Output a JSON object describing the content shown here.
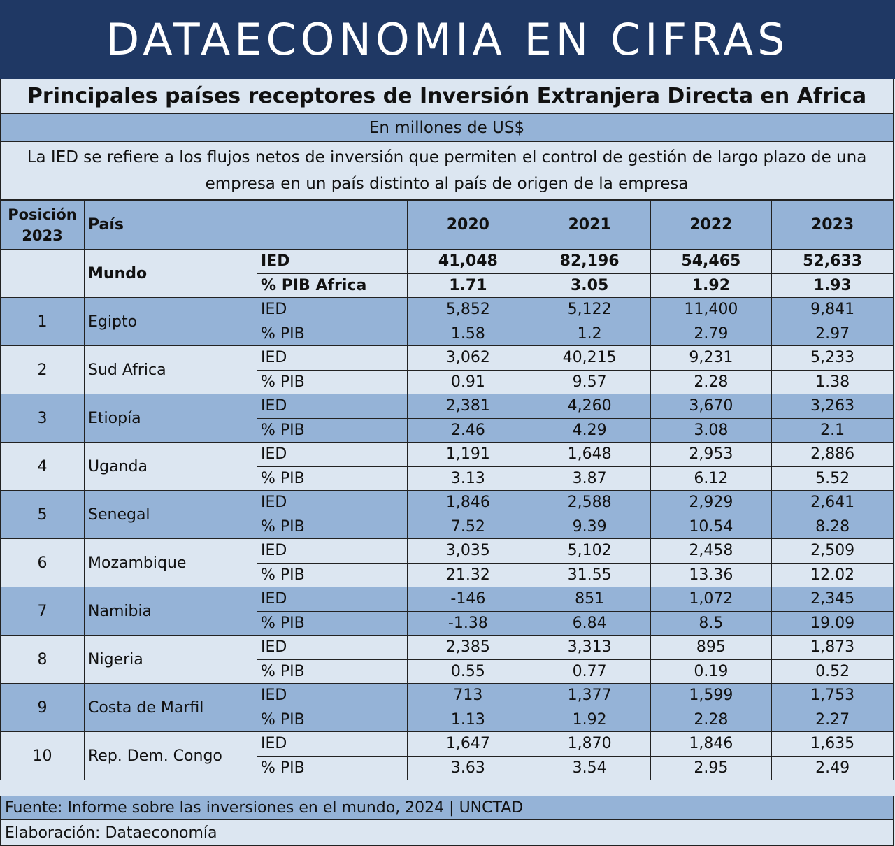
{
  "banner": "DATAECONOMIA EN CIFRAS",
  "title": "Principales países receptores de Inversión Extranjera Directa en Africa",
  "units": "En millones de US$",
  "description": "La IED se refiere a los flujos netos de inversión que permiten el control de gestión de largo plazo de una empresa en un país distinto al país de origen de la empresa",
  "headers": {
    "position": "Posición 2023",
    "country": "País",
    "metric": "",
    "years": [
      "2020",
      "2021",
      "2022",
      "2023"
    ]
  },
  "world": {
    "name": "Mundo",
    "ied_label": "IED",
    "pib_label": "% PIB Africa",
    "ied": [
      "41,048",
      "82,196",
      "54,465",
      "52,633"
    ],
    "pib": [
      "1.71",
      "3.05",
      "1.92",
      "1.93"
    ]
  },
  "ied_label": "IED",
  "pib_label": "% PIB",
  "rows": [
    {
      "pos": "1",
      "name": "Egipto",
      "ied": [
        "5,852",
        "5,122",
        "11,400",
        "9,841"
      ],
      "pib": [
        "1.58",
        "1.2",
        "2.79",
        "2.97"
      ]
    },
    {
      "pos": "2",
      "name": "Sud Africa",
      "ied": [
        "3,062",
        "40,215",
        "9,231",
        "5,233"
      ],
      "pib": [
        "0.91",
        "9.57",
        "2.28",
        "1.38"
      ]
    },
    {
      "pos": "3",
      "name": "Etiopía",
      "ied": [
        "2,381",
        "4,260",
        "3,670",
        "3,263"
      ],
      "pib": [
        "2.46",
        "4.29",
        "3.08",
        "2.1"
      ]
    },
    {
      "pos": "4",
      "name": "Uganda",
      "ied": [
        "1,191",
        "1,648",
        "2,953",
        "2,886"
      ],
      "pib": [
        "3.13",
        "3.87",
        "6.12",
        "5.52"
      ]
    },
    {
      "pos": "5",
      "name": "Senegal",
      "ied": [
        "1,846",
        "2,588",
        "2,929",
        "2,641"
      ],
      "pib": [
        "7.52",
        "9.39",
        "10.54",
        "8.28"
      ]
    },
    {
      "pos": "6",
      "name": "Mozambique",
      "ied": [
        "3,035",
        "5,102",
        "2,458",
        "2,509"
      ],
      "pib": [
        "21.32",
        "31.55",
        "13.36",
        "12.02"
      ]
    },
    {
      "pos": "7",
      "name": "Namibia",
      "ied": [
        "-146",
        "851",
        "1,072",
        "2,345"
      ],
      "pib": [
        "-1.38",
        "6.84",
        "8.5",
        "19.09"
      ]
    },
    {
      "pos": "8",
      "name": "Nigeria",
      "ied": [
        "2,385",
        "3,313",
        "895",
        "1,873"
      ],
      "pib": [
        "0.55",
        "0.77",
        "0.19",
        "0.52"
      ]
    },
    {
      "pos": "9",
      "name": "Costa de Marfil",
      "ied": [
        "713",
        "1,377",
        "1,599",
        "1,753"
      ],
      "pib": [
        "1.13",
        "1.92",
        "2.28",
        "2.27"
      ]
    },
    {
      "pos": "10",
      "name": "Rep. Dem. Congo",
      "ied": [
        "1,647",
        "1,870",
        "1,846",
        "1,635"
      ],
      "pib": [
        "3.63",
        "3.54",
        "2.95",
        "2.49"
      ]
    }
  ],
  "source": "Fuente: Informe sobre las inversiones en el mundo, 2024 | UNCTAD",
  "credit": "Elaboración: Dataeconomía"
}
